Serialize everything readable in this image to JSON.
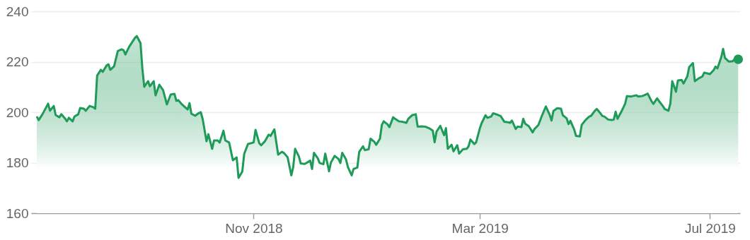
{
  "chart_data": {
    "type": "area",
    "grid": "y",
    "legend": false,
    "xlim": [
      "2018-07-06",
      "2019-07-17"
    ],
    "xticks": [
      {
        "value": "2018-11-01",
        "label": "Nov 2018"
      },
      {
        "value": "2019-03-01",
        "label": "Mar 2019"
      },
      {
        "value": "2019-07-01",
        "label": "Jul 2019"
      }
    ],
    "ylim": [
      160,
      240
    ],
    "yticks": [
      160,
      180,
      200,
      220,
      240
    ],
    "series": [
      {
        "color": "#1e9a59",
        "x": [
          "2018-07-09",
          "2018-07-10",
          "2018-07-12",
          "2018-07-13",
          "2018-07-15",
          "2018-07-16",
          "2018-07-18",
          "2018-07-19",
          "2018-07-21",
          "2018-07-22",
          "2018-07-24",
          "2018-07-25",
          "2018-07-26",
          "2018-07-28",
          "2018-07-29",
          "2018-07-31",
          "2018-08-01",
          "2018-08-03",
          "2018-08-04",
          "2018-08-06",
          "2018-08-08",
          "2018-08-09",
          "2018-08-10",
          "2018-08-12",
          "2018-08-13",
          "2018-08-15",
          "2018-08-16",
          "2018-08-17",
          "2018-08-19",
          "2018-08-21",
          "2018-08-23",
          "2018-08-24",
          "2018-08-25",
          "2018-08-27",
          "2018-08-28",
          "2018-08-30",
          "2018-08-31",
          "2018-09-02",
          "2018-09-03",
          "2018-09-04",
          "2018-09-06",
          "2018-09-07",
          "2018-09-09",
          "2018-09-10",
          "2018-09-12",
          "2018-09-14",
          "2018-09-16",
          "2018-09-18",
          "2018-09-20",
          "2018-09-21",
          "2018-09-22",
          "2018-09-24",
          "2018-09-27",
          "2018-09-28",
          "2018-09-29",
          "2018-10-01",
          "2018-10-03",
          "2018-10-04",
          "2018-10-05",
          "2018-10-07",
          "2018-10-08",
          "2018-10-10",
          "2018-10-11",
          "2018-10-13",
          "2018-10-14",
          "2018-10-16",
          "2018-10-17",
          "2018-10-19",
          "2018-10-21",
          "2018-10-23",
          "2018-10-24",
          "2018-10-26",
          "2018-10-27",
          "2018-10-29",
          "2018-11-01",
          "2018-11-02",
          "2018-11-04",
          "2018-11-05",
          "2018-11-07",
          "2018-11-09",
          "2018-11-10",
          "2018-11-12",
          "2018-11-14",
          "2018-11-16",
          "2018-11-17",
          "2018-11-19",
          "2018-11-21",
          "2018-11-22",
          "2018-11-23",
          "2018-11-25",
          "2018-11-26",
          "2018-11-28",
          "2018-11-29",
          "2018-12-01",
          "2018-12-02",
          "2018-12-03",
          "2018-12-05",
          "2018-12-06",
          "2018-12-08",
          "2018-12-09",
          "2018-12-11",
          "2018-12-12",
          "2018-12-14",
          "2018-12-16",
          "2018-12-17",
          "2018-12-18",
          "2018-12-20",
          "2018-12-21",
          "2018-12-23",
          "2018-12-24",
          "2018-12-26",
          "2018-12-27",
          "2018-12-29",
          "2018-12-30",
          "2019-01-01",
          "2019-01-02",
          "2019-01-04",
          "2019-01-05",
          "2019-01-07",
          "2019-01-08",
          "2019-01-09",
          "2019-01-11",
          "2019-01-12",
          "2019-01-14",
          "2019-01-15",
          "2019-01-17",
          "2019-01-19",
          "2019-01-21",
          "2019-01-22",
          "2019-01-24",
          "2019-01-26",
          "2019-01-27",
          "2019-01-29",
          "2019-01-31",
          "2019-02-02",
          "2019-02-04",
          "2019-02-05",
          "2019-02-06",
          "2019-02-08",
          "2019-02-10",
          "2019-02-11",
          "2019-02-12",
          "2019-02-14",
          "2019-02-15",
          "2019-02-17",
          "2019-02-18",
          "2019-02-20",
          "2019-02-22",
          "2019-02-23",
          "2019-02-24",
          "2019-02-26",
          "2019-02-27",
          "2019-03-01",
          "2019-03-02",
          "2019-03-04",
          "2019-03-05",
          "2019-03-07",
          "2019-03-08",
          "2019-03-10",
          "2019-03-12",
          "2019-03-14",
          "2019-03-16",
          "2019-03-17",
          "2019-03-18",
          "2019-03-20",
          "2019-03-21",
          "2019-03-23",
          "2019-03-24",
          "2019-03-25",
          "2019-03-27",
          "2019-03-29",
          "2019-03-30",
          "2019-04-01",
          "2019-04-03",
          "2019-04-05",
          "2019-04-07",
          "2019-04-08",
          "2019-04-09",
          "2019-04-11",
          "2019-04-13",
          "2019-04-14",
          "2019-04-16",
          "2019-04-17",
          "2019-04-18",
          "2019-04-20",
          "2019-04-21",
          "2019-04-23",
          "2019-04-24",
          "2019-04-26",
          "2019-04-28",
          "2019-04-29",
          "2019-05-01",
          "2019-05-02",
          "2019-05-04",
          "2019-05-05",
          "2019-05-06",
          "2019-05-08",
          "2019-05-10",
          "2019-05-11",
          "2019-05-12",
          "2019-05-13",
          "2019-05-15",
          "2019-05-17",
          "2019-05-18",
          "2019-05-20",
          "2019-05-21",
          "2019-05-23",
          "2019-05-24",
          "2019-05-26",
          "2019-05-27",
          "2019-05-29",
          "2019-05-31",
          "2019-06-01",
          "2019-06-03",
          "2019-06-04",
          "2019-06-06",
          "2019-06-07",
          "2019-06-09",
          "2019-06-10",
          "2019-06-11",
          "2019-06-13",
          "2019-06-14",
          "2019-06-16",
          "2019-06-17",
          "2019-06-19",
          "2019-06-20",
          "2019-06-22",
          "2019-06-23",
          "2019-06-25",
          "2019-06-27",
          "2019-06-28",
          "2019-06-30",
          "2019-07-01",
          "2019-07-03",
          "2019-07-04",
          "2019-07-05",
          "2019-07-07",
          "2019-07-08",
          "2019-07-09",
          "2019-07-11",
          "2019-07-13",
          "2019-07-14",
          "2019-07-16"
        ],
        "values": [
          198.3,
          196.9,
          199.2,
          200.6,
          203.4,
          200.6,
          202.5,
          198.9,
          198,
          199.2,
          197.5,
          196.4,
          197.8,
          196.4,
          198.3,
          199.2,
          201.7,
          201.4,
          200.6,
          202.5,
          202,
          201.4,
          214.5,
          216.8,
          216,
          218.5,
          219,
          216.8,
          218.2,
          224.3,
          224.9,
          224.6,
          222.9,
          226,
          227.1,
          229.4,
          230.2,
          227.4,
          217.3,
          210.1,
          212.3,
          210.3,
          212.3,
          206.7,
          210.9,
          208.7,
          203.1,
          207,
          207.3,
          204.5,
          204.8,
          203.1,
          201.1,
          203.6,
          199.4,
          198.6,
          199.7,
          200,
          197.2,
          188.5,
          191.3,
          185.5,
          188.8,
          188.8,
          188,
          192.7,
          188.8,
          188,
          181,
          182.1,
          174,
          176.5,
          183.5,
          187.4,
          188,
          193,
          187.7,
          186.9,
          188.5,
          191.1,
          190.6,
          193.2,
          183.2,
          184.3,
          183.9,
          182.2,
          175,
          178.3,
          185.5,
          182.5,
          179.7,
          179.5,
          179.9,
          180.8,
          177.5,
          183.9,
          181.8,
          179.9,
          179.4,
          183.6,
          176.6,
          180.1,
          182.7,
          181.5,
          179.9,
          183.9,
          181.3,
          178.3,
          175,
          177.5,
          178.1,
          184.3,
          186.5,
          185,
          185.3,
          189.5,
          188.3,
          187.1,
          189.5,
          195,
          196.4,
          195.2,
          194.1,
          198,
          197.4,
          196.4,
          196.2,
          195.8,
          197.4,
          198.8,
          199.2,
          194.3,
          194.4,
          194.3,
          193.7,
          192.7,
          188.1,
          192.3,
          194.6,
          190.9,
          193.7,
          185.5,
          187.1,
          184.5,
          186.9,
          183.6,
          185.3,
          185.5,
          186.5,
          189.2,
          187.4,
          188.1,
          193.7,
          195.8,
          198.8,
          197.8,
          198.3,
          199.6,
          199.1,
          198.5,
          196.2,
          196,
          195.8,
          196.7,
          193.4,
          194.3,
          194.1,
          197.4,
          195.5,
          194.4,
          192,
          193.4,
          194.9,
          198.8,
          202.3,
          199,
          196.7,
          200.5,
          201.6,
          201.4,
          198.8,
          197.6,
          195.3,
          196.6,
          193.2,
          190.6,
          190.4,
          195,
          196.9,
          198.3,
          198.6,
          200.6,
          201.3,
          199.5,
          198.5,
          198.3,
          197.1,
          196.9,
          197.1,
          200.2,
          197.4,
          200.2,
          203.3,
          206.4,
          206.2,
          206.4,
          206.7,
          206.2,
          206.4,
          206.7,
          207.4,
          204.4,
          203.3,
          205.5,
          204.4,
          202.5,
          201.3,
          200.6,
          203.4,
          212.3,
          208.1,
          212.6,
          212.8,
          211.4,
          214.2,
          217.9,
          219.5,
          212.3,
          213.4,
          214.2,
          215.7,
          215.3,
          215.1,
          216.7,
          218.1,
          217.4,
          221.8,
          225.1,
          221.5,
          220.1,
          220.2,
          221,
          221
        ]
      },
      {
        "type": "scatter",
        "color": "#1e9a59",
        "marker": "circle",
        "x": [
          "2019-07-16"
        ],
        "values": [
          221
        ]
      }
    ]
  }
}
